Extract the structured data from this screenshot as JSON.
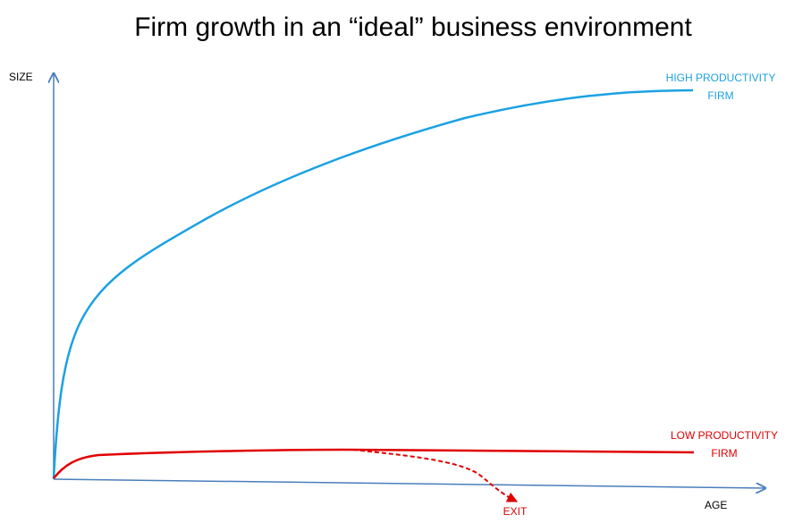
{
  "title": "Firm growth in an “ideal” business environment",
  "y_axis_label": "SIZE",
  "x_axis_label": "AGE",
  "curves": [
    {
      "label_lines": [
        "HIGH PRODUCTIVITY",
        "FIRM"
      ]
    },
    {
      "label_lines": [
        "LOW PRODUCTIVITY",
        "FIRM"
      ]
    }
  ],
  "exit_label": "EXIT"
}
